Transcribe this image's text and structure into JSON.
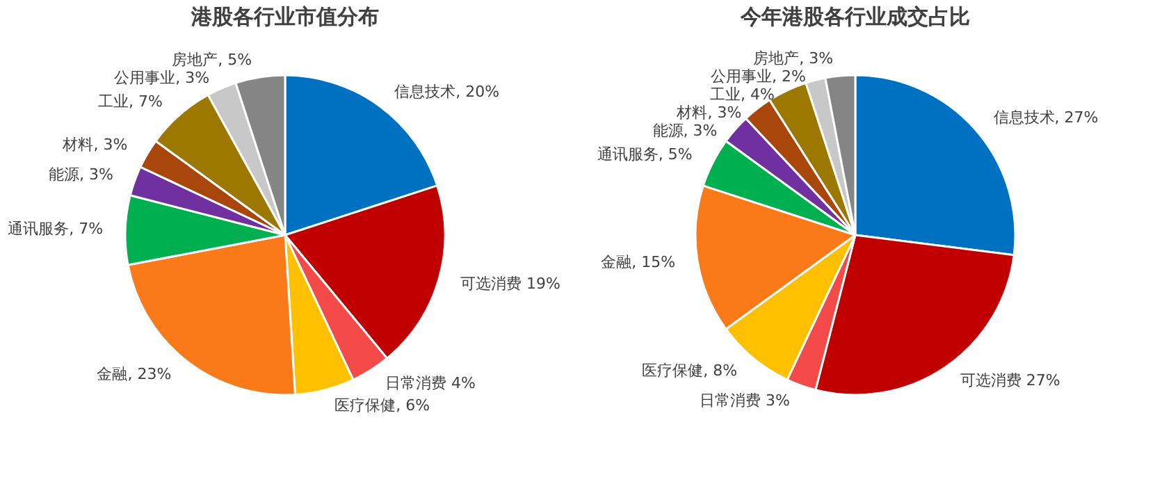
{
  "chart_data": [
    {
      "type": "pie",
      "title": "港股各行业市值分布",
      "categories": [
        "信息技术",
        "可选消费",
        "日常消费",
        "医疗保健",
        "金融",
        "通讯服务",
        "能源",
        "材料",
        "工业",
        "公用事业",
        "房地产"
      ],
      "values": [
        20,
        19,
        4,
        6,
        23,
        7,
        3,
        3,
        7,
        3,
        5
      ],
      "colors": [
        "#0070c0",
        "#c00000",
        "#f44a4a",
        "#ffc000",
        "#fa7a1a",
        "#00b050",
        "#7030a0",
        "#a8460c",
        "#9c7800",
        "#c8c8c8",
        "#858585"
      ],
      "value_labels": [
        ", 20%",
        " 19%",
        " 4%",
        ", 6%",
        ", 23%",
        ", 7%",
        ", 3%",
        ", 3%",
        ", 7%",
        ", 3%",
        ", 5%"
      ]
    },
    {
      "type": "pie",
      "title": "今年港股各行业成交占比",
      "categories": [
        "信息技术",
        "可选消费",
        "日常消费",
        "医疗保健",
        "金融",
        "通讯服务",
        "能源",
        "材料",
        "工业",
        "公用事业",
        "房地产"
      ],
      "values": [
        27,
        27,
        3,
        8,
        15,
        5,
        3,
        3,
        4,
        2,
        3
      ],
      "colors": [
        "#0070c0",
        "#c00000",
        "#f44a4a",
        "#ffc000",
        "#fa7a1a",
        "#00b050",
        "#7030a0",
        "#a8460c",
        "#9c7800",
        "#c8c8c8",
        "#858585"
      ],
      "value_labels": [
        ", 27%",
        " 27%",
        " 3%",
        ", 8%",
        ", 15%",
        ", 5%",
        ", 3%",
        ", 3%",
        ", 4%",
        ", 2%",
        ", 3%"
      ]
    }
  ]
}
